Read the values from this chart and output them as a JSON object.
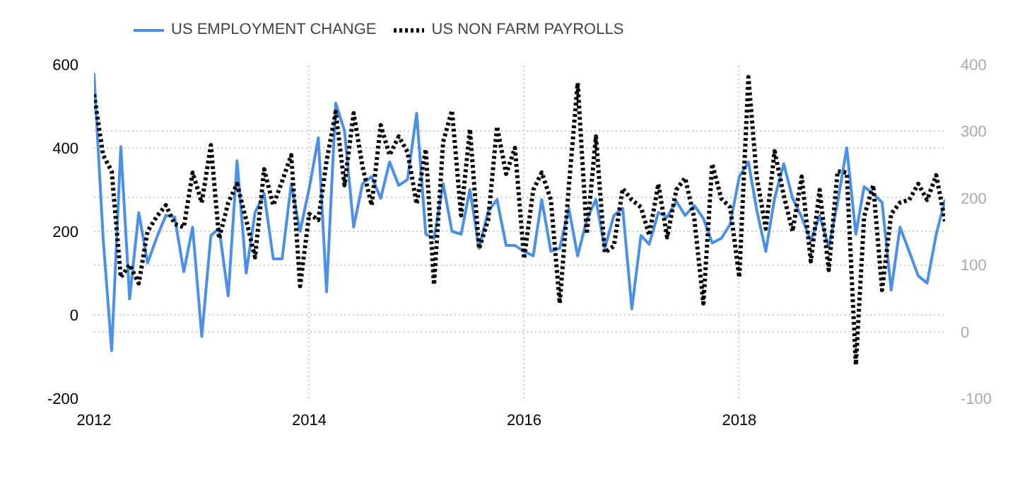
{
  "chart_data": {
    "type": "line",
    "x": [
      "2012-01",
      "2012-02",
      "2012-03",
      "2012-04",
      "2012-05",
      "2012-06",
      "2012-07",
      "2012-08",
      "2012-09",
      "2012-10",
      "2012-11",
      "2012-12",
      "2013-01",
      "2013-02",
      "2013-03",
      "2013-04",
      "2013-05",
      "2013-06",
      "2013-07",
      "2013-08",
      "2013-09",
      "2013-10",
      "2013-11",
      "2013-12",
      "2014-01",
      "2014-02",
      "2014-03",
      "2014-04",
      "2014-05",
      "2014-06",
      "2014-07",
      "2014-08",
      "2014-09",
      "2014-10",
      "2014-11",
      "2014-12",
      "2015-01",
      "2015-02",
      "2015-03",
      "2015-04",
      "2015-05",
      "2015-06",
      "2015-07",
      "2015-08",
      "2015-09",
      "2015-10",
      "2015-11",
      "2015-12",
      "2016-01",
      "2016-02",
      "2016-03",
      "2016-04",
      "2016-05",
      "2016-06",
      "2016-07",
      "2016-08",
      "2016-09",
      "2016-10",
      "2016-11",
      "2016-12",
      "2017-01",
      "2017-02",
      "2017-03",
      "2017-04",
      "2017-05",
      "2017-06",
      "2017-07",
      "2017-08",
      "2017-09",
      "2017-10",
      "2017-11",
      "2017-12",
      "2018-01",
      "2018-02",
      "2018-03",
      "2018-04",
      "2018-05",
      "2018-06",
      "2018-07",
      "2018-08",
      "2018-09",
      "2018-10",
      "2018-11",
      "2018-12",
      "2019-01",
      "2019-02",
      "2019-03",
      "2019-04",
      "2019-05",
      "2019-06",
      "2019-07",
      "2019-08",
      "2019-09",
      "2019-10",
      "2019-11",
      "2019-12"
    ],
    "series": [
      {
        "name": "US EMPLOYMENT CHANGE",
        "color": "#4a90e8",
        "line_style": "solid",
        "values": [
          579,
          183,
          -86,
          403,
          38,
          245,
          124,
          185,
          238,
          234,
          103,
          210,
          -52,
          190,
          207,
          45,
          369,
          100,
          245,
          290,
          134,
          134,
          314,
          200,
          303,
          424,
          55,
          507,
          441,
          210,
          314,
          331,
          279,
          366,
          310,
          324,
          483,
          193,
          183,
          314,
          200,
          193,
          300,
          159,
          248,
          276,
          166,
          166,
          152,
          141,
          276,
          152,
          159,
          255,
          141,
          228,
          276,
          159,
          238,
          255,
          14,
          190,
          169,
          245,
          234,
          272,
          238,
          262,
          231,
          172,
          183,
          217,
          331,
          366,
          252,
          152,
          279,
          362,
          279,
          234,
          176,
          238,
          162,
          269,
          400,
          193,
          307,
          290,
          269,
          59,
          210,
          152,
          93,
          76,
          193,
          276
        ]
      },
      {
        "name": "US NON FARM PAYROLLS",
        "color": "#000000",
        "line_style": "dotted",
        "axis": "y2",
        "values": [
          355,
          264,
          240,
          81,
          100,
          72,
          150,
          172,
          189,
          161,
          156,
          238,
          193,
          279,
          139,
          193,
          221,
          167,
          111,
          243,
          189,
          225,
          264,
          68,
          176,
          167,
          255,
          329,
          219,
          327,
          247,
          189,
          309,
          264,
          292,
          269,
          191,
          273,
          70,
          284,
          331,
          174,
          303,
          124,
          167,
          307,
          236,
          275,
          109,
          212,
          238,
          197,
          42,
          217,
          372,
          146,
          292,
          118,
          128,
          214,
          197,
          186,
          144,
          221,
          141,
          212,
          230,
          170,
          42,
          251,
          199,
          186,
          81,
          381,
          232,
          154,
          270,
          204,
          150,
          232,
          105,
          212,
          92,
          240,
          238,
          -50,
          172,
          219,
          62,
          176,
          193,
          197,
          221,
          197,
          234,
          165
        ]
      }
    ],
    "xlim": [
      "2012-01",
      "2019-12"
    ],
    "xticks": [
      "2012",
      "2014",
      "2016",
      "2018"
    ],
    "ylim": [
      -200,
      600
    ],
    "yticks": [
      -200,
      0,
      200,
      400,
      600
    ],
    "y2lim": [
      -100,
      400
    ],
    "y2ticks": [
      -100,
      0,
      100,
      200,
      300,
      400
    ],
    "grid": true,
    "legend": "top left"
  }
}
